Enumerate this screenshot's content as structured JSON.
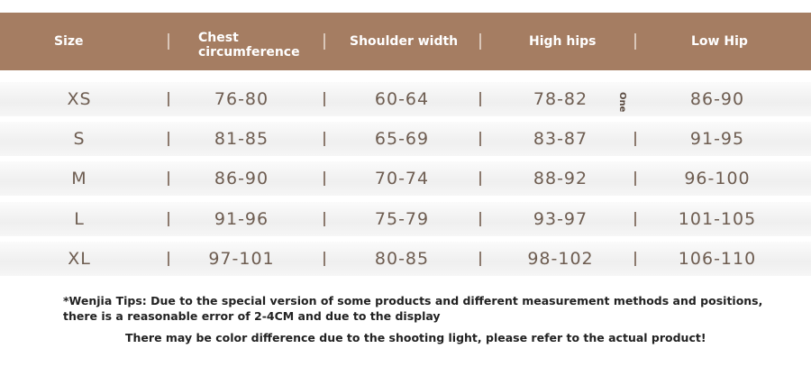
{
  "table": {
    "header": [
      "Size",
      "Chest circumference",
      "Shoulder width",
      "High hips",
      "Low Hip"
    ],
    "rows": [
      [
        "XS",
        "76-80",
        "60-64",
        "78-82",
        "86-90"
      ],
      [
        "S",
        "81-85",
        "65-69",
        "83-87",
        "91-95"
      ],
      [
        "M",
        "86-90",
        "70-74",
        "88-92",
        "96-100"
      ],
      [
        "L",
        "91-96",
        "75-79",
        "93-97",
        "101-105"
      ],
      [
        "XL",
        "97-101",
        "80-85",
        "98-102",
        "106-110"
      ]
    ],
    "note": "One"
  },
  "tips": [
    "*Wenjia Tips: Due to the special version of some products and different measurement methods and positions, there is a reasonable error of 2-4CM and due to the display",
    "There may be color difference due to the shooting light, please refer to the actual product!"
  ]
}
